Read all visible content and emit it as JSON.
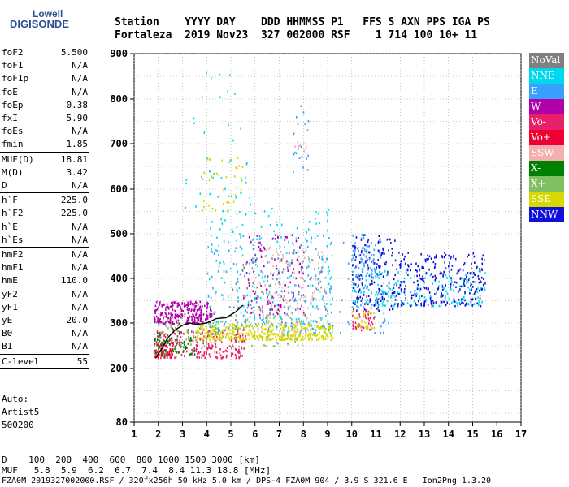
{
  "logo": {
    "line1": "Lowell",
    "line2": "DIGISONDE"
  },
  "header": {
    "labels": "Station    YYYY DAY    DDD HHMMSS P1   FFS S AXN PPS IGA PS",
    "values": "Fortaleza  2019 Nov23  327 002000 RSF    1 714 100 10+ 11"
  },
  "params": [
    {
      "name": "foF2",
      "value": "5.500",
      "sep": false
    },
    {
      "name": "foF1",
      "value": "N/A",
      "sep": false
    },
    {
      "name": "foF1p",
      "value": "N/A",
      "sep": false
    },
    {
      "name": "foE",
      "value": "N/A",
      "sep": false
    },
    {
      "name": "foEp",
      "value": "0.38",
      "sep": false
    },
    {
      "name": "fxI",
      "value": "5.90",
      "sep": false
    },
    {
      "name": "foEs",
      "value": "N/A",
      "sep": false
    },
    {
      "name": "fmin",
      "value": "1.85",
      "sep": true
    },
    {
      "name": "MUF(D)",
      "value": "18.81",
      "sep": false
    },
    {
      "name": "M(D)",
      "value": "3.42",
      "sep": false
    },
    {
      "name": "D",
      "value": "N/A",
      "sep": true
    },
    {
      "name": "h`F",
      "value": "225.0",
      "sep": false
    },
    {
      "name": "h`F2",
      "value": "225.0",
      "sep": false
    },
    {
      "name": "h`E",
      "value": "N/A",
      "sep": false
    },
    {
      "name": "h`Es",
      "value": "N/A",
      "sep": true
    },
    {
      "name": "hmF2",
      "value": "N/A",
      "sep": false
    },
    {
      "name": "hmF1",
      "value": "N/A",
      "sep": false
    },
    {
      "name": "hmE",
      "value": "110.0",
      "sep": false
    },
    {
      "name": "yF2",
      "value": "N/A",
      "sep": false
    },
    {
      "name": "yF1",
      "value": "N/A",
      "sep": false
    },
    {
      "name": "yE",
      "value": "20.0",
      "sep": false
    },
    {
      "name": "B0",
      "value": "N/A",
      "sep": false
    },
    {
      "name": "B1",
      "value": "N/A",
      "sep": true
    },
    {
      "name": "C-level",
      "value": "55",
      "sep": true
    }
  ],
  "auto": {
    "line1": "Auto:",
    "line2": "Artist5",
    "line3": "500200"
  },
  "footer": {
    "d_row": "D    100  200  400  600  800 1000 1500 3000 [km]",
    "muf_row": "MUF   5.8  5.9  6.2  6.7  7.4  8.4 11.3 18.8 [MHz]",
    "file_row": "FZA0M_2019327002000.RSF / 320fx256h 50 kHz 5.0 km / DPS-4 FZA0M 904 / 3.9 S 321.6 E   Ion2Png 1.3.20"
  },
  "legend": [
    {
      "label": "NoVal",
      "color": "#808080"
    },
    {
      "label": "NNE",
      "color": "#00d8f0"
    },
    {
      "label": "E",
      "color": "#3aa0ff"
    },
    {
      "label": "W",
      "color": "#b000a8"
    },
    {
      "label": "Vo-",
      "color": "#e8206a"
    },
    {
      "label": "Vo+",
      "color": "#f00030"
    },
    {
      "label": "SSW",
      "color": "#f4b0b0"
    },
    {
      "label": "X-",
      "color": "#008000"
    },
    {
      "label": "X+",
      "color": "#80c060"
    },
    {
      "label": "SSE",
      "color": "#d8d800"
    },
    {
      "label": "NNW",
      "color": "#1010d8"
    }
  ],
  "chart_data": {
    "type": "scatter",
    "xlim": [
      1,
      17
    ],
    "ylim": [
      80,
      900
    ],
    "x_ticks": [
      "1",
      "2",
      "3",
      "4",
      "5",
      "6",
      "7",
      "8",
      "9",
      "10",
      "11",
      "12",
      "13",
      "14",
      "15",
      "16",
      "17"
    ],
    "y_ticks": [
      "80",
      "200",
      "300",
      "400",
      "500",
      "600",
      "700",
      "800",
      "900"
    ],
    "grid": true,
    "trace": {
      "x": [
        1.9,
        2.1,
        2.4,
        2.7,
        3.0,
        3.3,
        3.6,
        4.0,
        4.4,
        4.8,
        5.2,
        5.5
      ],
      "y": [
        225,
        240,
        268,
        285,
        295,
        300,
        297,
        300,
        310,
        312,
        325,
        340
      ]
    },
    "clusters": [
      {
        "color": "#b000a8",
        "xr": [
          1.8,
          4.2
        ],
        "yr": [
          300,
          350
        ],
        "n": 260
      },
      {
        "color": "#e8206a",
        "xr": [
          1.8,
          5.6
        ],
        "yr": [
          225,
          290
        ],
        "n": 240
      },
      {
        "color": "#f00030",
        "xr": [
          1.8,
          2.6
        ],
        "yr": [
          225,
          260
        ],
        "n": 60
      },
      {
        "color": "#d8d800",
        "xr": [
          3.5,
          9.2
        ],
        "yr": [
          265,
          300
        ],
        "n": 380
      },
      {
        "color": "#008000",
        "xr": [
          1.8,
          3.5
        ],
        "yr": [
          230,
          290
        ],
        "n": 70
      },
      {
        "color": "#80c060",
        "xr": [
          1.8,
          8.0
        ],
        "yr": [
          250,
          320
        ],
        "n": 120
      },
      {
        "color": "#00d8f0",
        "xr": [
          4.0,
          9.2
        ],
        "yr": [
          280,
          560
        ],
        "n": 220
      },
      {
        "color": "#3aa0ff",
        "xr": [
          4.0,
          11.5
        ],
        "yr": [
          280,
          500
        ],
        "n": 200
      },
      {
        "color": "#f4b0b0",
        "xr": [
          6.0,
          9.0
        ],
        "yr": [
          280,
          480
        ],
        "n": 110
      },
      {
        "color": "#b000a8",
        "xr": [
          5.5,
          8.0
        ],
        "yr": [
          320,
          500
        ],
        "n": 110
      },
      {
        "color": "#808080",
        "xr": [
          5.0,
          9.0
        ],
        "yr": [
          300,
          450
        ],
        "n": 80
      },
      {
        "color": "#1010d8",
        "xr": [
          10.0,
          11.8
        ],
        "yr": [
          330,
          500
        ],
        "n": 170
      },
      {
        "color": "#00d8f0",
        "xr": [
          10.0,
          15.5
        ],
        "yr": [
          340,
          420
        ],
        "n": 200
      },
      {
        "color": "#1010d8",
        "xr": [
          11.8,
          15.5
        ],
        "yr": [
          340,
          460
        ],
        "n": 260
      },
      {
        "color": "#3aa0ff",
        "xr": [
          10.0,
          11.0
        ],
        "yr": [
          400,
          500
        ],
        "n": 60
      },
      {
        "color": "#e8206a",
        "xr": [
          10.0,
          10.9
        ],
        "yr": [
          285,
          330
        ],
        "n": 40
      },
      {
        "color": "#d8d800",
        "xr": [
          10.0,
          11.0
        ],
        "yr": [
          290,
          330
        ],
        "n": 30
      },
      {
        "color": "#d8d800",
        "xr": [
          3.8,
          5.5
        ],
        "yr": [
          550,
          680
        ],
        "n": 40
      },
      {
        "color": "#00d8f0",
        "xr": [
          3.0,
          5.8
        ],
        "yr": [
          560,
          860
        ],
        "n": 40
      },
      {
        "color": "#3aa0ff",
        "xr": [
          7.5,
          8.2
        ],
        "yr": [
          640,
          790
        ],
        "n": 20
      },
      {
        "color": "#f4b0b0",
        "xr": [
          7.6,
          8.1
        ],
        "yr": [
          680,
          720
        ],
        "n": 10
      }
    ]
  }
}
